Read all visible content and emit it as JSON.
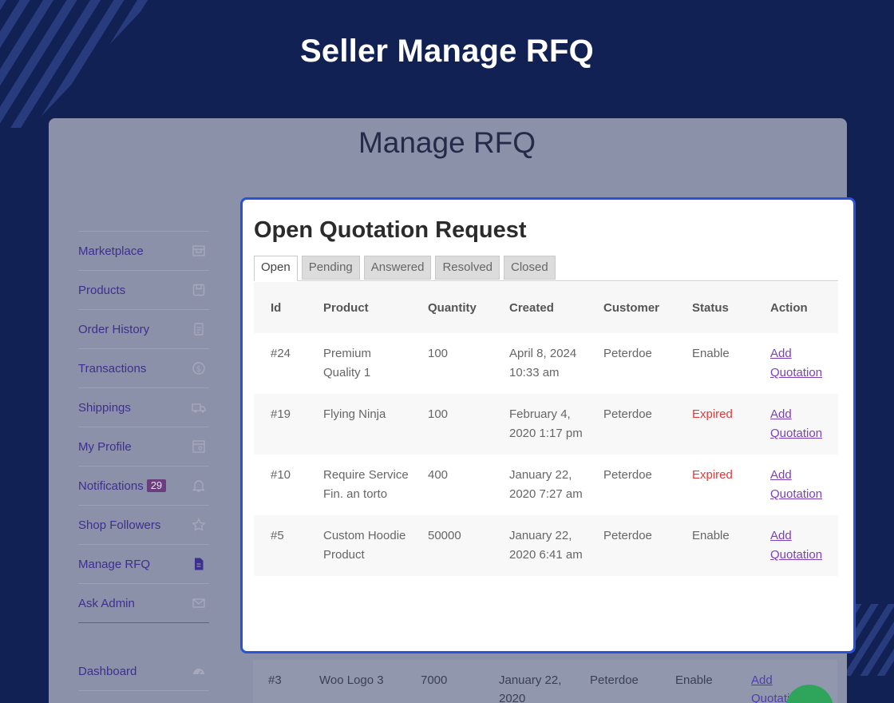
{
  "hero": {
    "title": "Seller Manage RFQ"
  },
  "panel": {
    "title": "Manage RFQ"
  },
  "sidebar": {
    "items": [
      {
        "label": "Marketplace",
        "icon": "store-icon"
      },
      {
        "label": "Products",
        "icon": "box-icon"
      },
      {
        "label": "Order History",
        "icon": "document-icon"
      },
      {
        "label": "Transactions",
        "icon": "dollar-icon"
      },
      {
        "label": "Shippings",
        "icon": "truck-icon"
      },
      {
        "label": "My Profile",
        "icon": "profile-icon"
      },
      {
        "label": "Notifications",
        "icon": "bell-icon",
        "badge": "29"
      },
      {
        "label": "Shop Followers",
        "icon": "star-icon"
      },
      {
        "label": "Manage RFQ",
        "icon": "file-icon"
      },
      {
        "label": "Ask Admin",
        "icon": "mail-icon"
      }
    ],
    "dashboard": {
      "label": "Dashboard",
      "icon": "gauge-icon"
    }
  },
  "card": {
    "title": "Open Quotation Request",
    "tabs": [
      "Open",
      "Pending",
      "Answered",
      "Resolved",
      "Closed"
    ],
    "active_tab": "Open",
    "columns": [
      "Id",
      "Product",
      "Quantity",
      "Created",
      "Customer",
      "Status",
      "Action"
    ],
    "rows": [
      {
        "id": "#24",
        "product": "Premium Quality 1",
        "quantity": "100",
        "created": "April 8, 2024 10:33 am",
        "customer": "Peterdoe",
        "status": "Enable",
        "action": "Add Quotation"
      },
      {
        "id": "#19",
        "product": "Flying Ninja",
        "quantity": "100",
        "created": "February 4, 2020 1:17 pm",
        "customer": "Peterdoe",
        "status": "Expired",
        "action": "Add Quotation"
      },
      {
        "id": "#10",
        "product": "Require Service Fin. an torto",
        "quantity": "400",
        "created": "January 22, 2020 7:27 am",
        "customer": "Peterdoe",
        "status": "Expired",
        "action": "Add Quotation"
      },
      {
        "id": "#5",
        "product": "Custom Hoodie Product",
        "quantity": "50000",
        "created": "January 22, 2020 6:41 am",
        "customer": "Peterdoe",
        "status": "Enable",
        "action": "Add Quotation"
      }
    ]
  },
  "background_row": {
    "id": "#3",
    "product": "Woo Logo 3",
    "quantity": "7000",
    "created": "January 22, 2020",
    "customer": "Peterdoe",
    "status": "Enable",
    "action": "Add Quotati"
  },
  "colors": {
    "accent": "#2a52d8",
    "page_bg": "#122153",
    "expired": "#e03a3a",
    "link": "#7d3fb8"
  }
}
